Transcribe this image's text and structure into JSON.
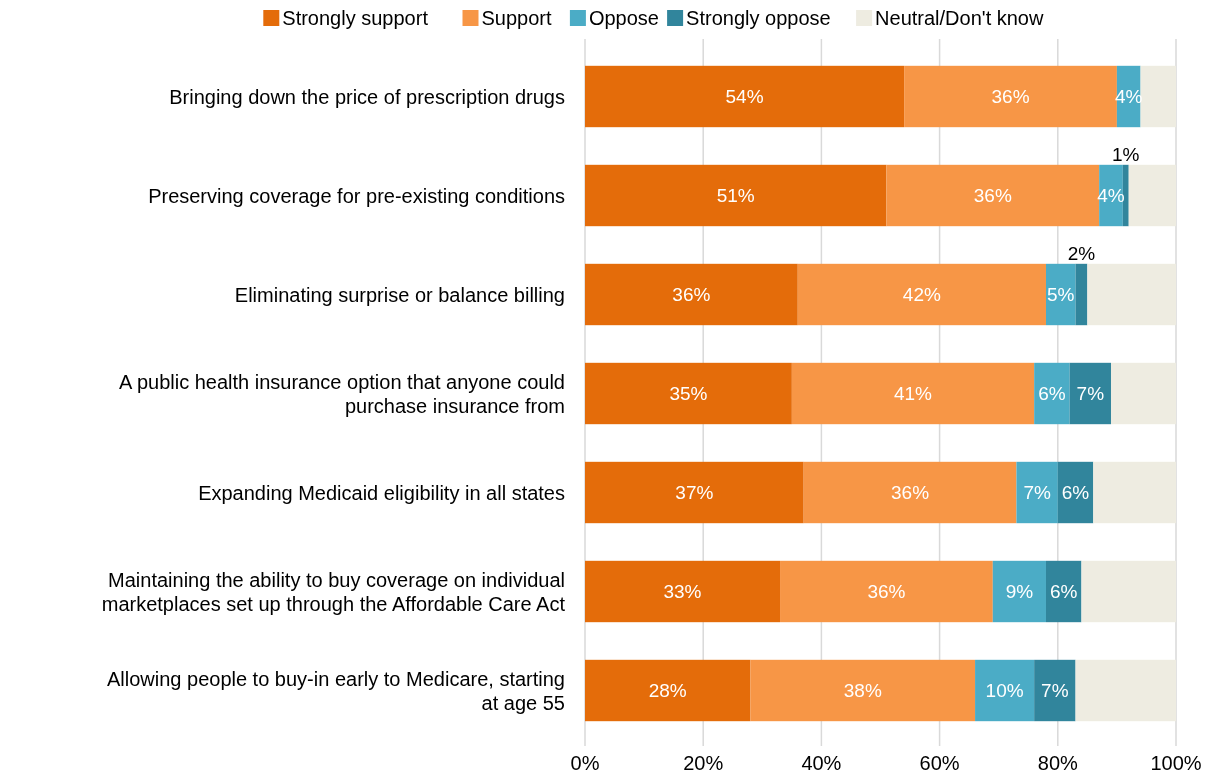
{
  "chart_data": {
    "type": "bar",
    "orientation": "horizontal",
    "stacked": true,
    "categories": [
      "Bringing down the price of prescription drugs",
      "Preserving coverage for pre-existing conditions",
      "Eliminating surprise or balance billing",
      "A public health insurance option that anyone could purchase insurance from",
      "Expanding Medicaid eligibility in all states",
      "Maintaining the ability to buy coverage on individual marketplaces set up through the Affordable Care Act",
      "Allowing people to buy-in early to Medicare, starting at age 55"
    ],
    "series": [
      {
        "name": "Strongly support",
        "color": "#e46c0a",
        "values": [
          54,
          51,
          36,
          35,
          37,
          33,
          28
        ],
        "value_labels": [
          "54%",
          "51%",
          "36%",
          "35%",
          "37%",
          "33%",
          "28%"
        ]
      },
      {
        "name": "Support",
        "color": "#f79646",
        "values": [
          36,
          36,
          42,
          41,
          36,
          36,
          38
        ],
        "value_labels": [
          "36%",
          "36%",
          "42%",
          "41%",
          "36%",
          "36%",
          "38%"
        ]
      },
      {
        "name": "Oppose",
        "color": "#4bacc6",
        "values": [
          4,
          4,
          5,
          6,
          7,
          9,
          10
        ],
        "value_labels": [
          "4%",
          "4%",
          "5%",
          "6%",
          "7%",
          "9%",
          "10%"
        ]
      },
      {
        "name": "Strongly oppose",
        "color": "#31859c",
        "values": [
          null,
          1,
          2,
          7,
          6,
          6,
          7
        ],
        "value_labels": [
          null,
          "1%",
          "2%",
          "7%",
          "6%",
          "6%",
          "7%"
        ]
      },
      {
        "name": "Neutral/Don't know",
        "color": "#eeece1",
        "values": [
          6,
          8,
          15,
          11,
          14,
          16,
          17
        ]
      }
    ],
    "xlim": [
      0,
      100
    ],
    "xticks": [
      {
        "value": 0,
        "label": "0%"
      },
      {
        "value": 20,
        "label": "20%"
      },
      {
        "value": 40,
        "label": "40%"
      },
      {
        "value": 60,
        "label": "60%"
      },
      {
        "value": 80,
        "label": "80%"
      },
      {
        "value": 100,
        "label": "100%"
      }
    ],
    "grid": "x",
    "legend": "top"
  }
}
